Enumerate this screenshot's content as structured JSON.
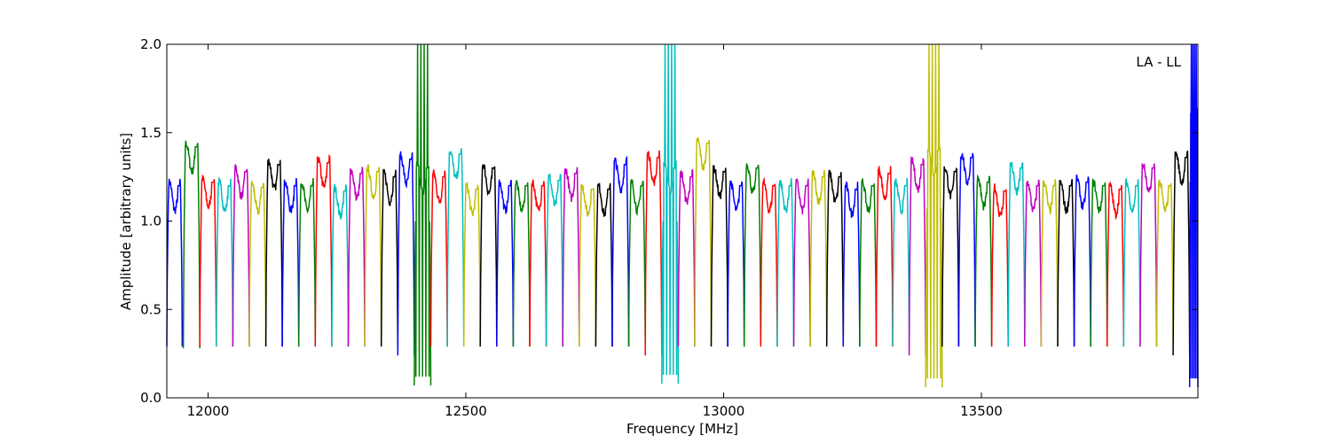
{
  "chart_data": {
    "type": "line",
    "xlabel": "Frequency [MHz]",
    "ylabel": "Amplitude [arbitrary units]",
    "annotation": "LA - LL",
    "xlim": [
      11920,
      13920
    ],
    "ylim": [
      0.0,
      2.0
    ],
    "xticks": [
      12000,
      12500,
      13000,
      13500
    ],
    "yticks": [
      0.0,
      0.5,
      1.0,
      1.5,
      2.0
    ],
    "ytick_labels": [
      "0.0",
      "0.5",
      "1.0",
      "1.5",
      "2.0"
    ],
    "grid": false,
    "legend": "none",
    "channel_width_mhz": 32,
    "color_cycle": [
      "#0000ff",
      "#008000",
      "#ff0000",
      "#00bfbf",
      "#bf00bf",
      "#bfbf00",
      "#000000"
    ],
    "reference_color": "#bfbfbf",
    "series": [
      {
        "x_start": 11920,
        "x_end": 11950,
        "level": 1.2,
        "color": "#0000ff"
      },
      {
        "x_start": 11952,
        "x_end": 11984,
        "level": 1.42,
        "color": "#008000",
        "min": 0.28
      },
      {
        "x_start": 11984,
        "x_end": 12016,
        "level": 1.22,
        "color": "#ff0000"
      },
      {
        "x_start": 12016,
        "x_end": 12048,
        "level": 1.2,
        "color": "#00bfbf"
      },
      {
        "x_start": 12048,
        "x_end": 12080,
        "level": 1.28,
        "color": "#bf00bf"
      },
      {
        "x_start": 12080,
        "x_end": 12112,
        "level": 1.19,
        "color": "#bfbf00"
      },
      {
        "x_start": 12112,
        "x_end": 12144,
        "level": 1.32,
        "color": "#000000"
      },
      {
        "x_start": 12144,
        "x_end": 12176,
        "level": 1.2,
        "color": "#0000ff"
      },
      {
        "x_start": 12176,
        "x_end": 12208,
        "level": 1.2,
        "color": "#008000"
      },
      {
        "x_start": 12208,
        "x_end": 12240,
        "level": 1.33,
        "color": "#ff0000"
      },
      {
        "x_start": 12240,
        "x_end": 12272,
        "level": 1.17,
        "color": "#00bfbf"
      },
      {
        "x_start": 12272,
        "x_end": 12304,
        "level": 1.27,
        "color": "#bf00bf"
      },
      {
        "x_start": 12304,
        "x_end": 12336,
        "level": 1.28,
        "color": "#bfbf00"
      },
      {
        "x_start": 12336,
        "x_end": 12368,
        "level": 1.25,
        "color": "#000000"
      },
      {
        "x_start": 12368,
        "x_end": 12400,
        "level": 1.35,
        "color": "#0000ff",
        "min": 0.24
      },
      {
        "x_start": 12400,
        "x_end": 12432,
        "level": 1.3,
        "color": "#008000",
        "min": 0.07,
        "spike": 2.0
      },
      {
        "x_start": 12432,
        "x_end": 12464,
        "level": 1.25,
        "color": "#ff0000"
      },
      {
        "x_start": 12464,
        "x_end": 12496,
        "level": 1.38,
        "color": "#00bfbf"
      },
      {
        "x_start": 12496,
        "x_end": 12528,
        "level": 1.18,
        "color": "#bfbf00"
      },
      {
        "x_start": 12528,
        "x_end": 12560,
        "level": 1.3,
        "color": "#000000"
      },
      {
        "x_start": 12560,
        "x_end": 12592,
        "level": 1.2,
        "color": "#0000ff"
      },
      {
        "x_start": 12592,
        "x_end": 12624,
        "level": 1.2,
        "color": "#008000"
      },
      {
        "x_start": 12624,
        "x_end": 12656,
        "level": 1.2,
        "color": "#ff0000"
      },
      {
        "x_start": 12656,
        "x_end": 12688,
        "level": 1.23,
        "color": "#00bfbf"
      },
      {
        "x_start": 12688,
        "x_end": 12720,
        "level": 1.27,
        "color": "#bf00bf"
      },
      {
        "x_start": 12720,
        "x_end": 12752,
        "level": 1.18,
        "color": "#bfbf00"
      },
      {
        "x_start": 12752,
        "x_end": 12784,
        "level": 1.18,
        "color": "#000000"
      },
      {
        "x_start": 12784,
        "x_end": 12816,
        "level": 1.32,
        "color": "#0000ff"
      },
      {
        "x_start": 12816,
        "x_end": 12848,
        "level": 1.2,
        "color": "#008000"
      },
      {
        "x_start": 12848,
        "x_end": 12880,
        "level": 1.36,
        "color": "#ff0000",
        "min": 0.24
      },
      {
        "x_start": 12880,
        "x_end": 12912,
        "level": 1.3,
        "color": "#00bfbf",
        "min": 0.08,
        "spike": 2.0
      },
      {
        "x_start": 12912,
        "x_end": 12944,
        "level": 1.25,
        "color": "#bf00bf"
      },
      {
        "x_start": 12944,
        "x_end": 12976,
        "level": 1.44,
        "color": "#bfbf00"
      },
      {
        "x_start": 12976,
        "x_end": 13008,
        "level": 1.28,
        "color": "#000000"
      },
      {
        "x_start": 13008,
        "x_end": 13040,
        "level": 1.2,
        "color": "#0000ff"
      },
      {
        "x_start": 13040,
        "x_end": 13072,
        "level": 1.3,
        "color": "#008000"
      },
      {
        "x_start": 13072,
        "x_end": 13104,
        "level": 1.2,
        "color": "#ff0000"
      },
      {
        "x_start": 13104,
        "x_end": 13136,
        "level": 1.2,
        "color": "#00bfbf"
      },
      {
        "x_start": 13136,
        "x_end": 13168,
        "level": 1.2,
        "color": "#bf00bf"
      },
      {
        "x_start": 13168,
        "x_end": 13200,
        "level": 1.25,
        "color": "#bfbf00"
      },
      {
        "x_start": 13200,
        "x_end": 13232,
        "level": 1.25,
        "color": "#000000"
      },
      {
        "x_start": 13232,
        "x_end": 13264,
        "level": 1.18,
        "color": "#0000ff"
      },
      {
        "x_start": 13264,
        "x_end": 13296,
        "level": 1.2,
        "color": "#008000"
      },
      {
        "x_start": 13296,
        "x_end": 13328,
        "level": 1.27,
        "color": "#ff0000"
      },
      {
        "x_start": 13328,
        "x_end": 13360,
        "level": 1.2,
        "color": "#00bfbf"
      },
      {
        "x_start": 13360,
        "x_end": 13392,
        "level": 1.32,
        "color": "#bf00bf",
        "min": 0.24
      },
      {
        "x_start": 13392,
        "x_end": 13424,
        "level": 1.4,
        "color": "#bfbf00",
        "min": 0.06,
        "spike": 2.0
      },
      {
        "x_start": 13424,
        "x_end": 13456,
        "level": 1.28,
        "color": "#000000"
      },
      {
        "x_start": 13456,
        "x_end": 13488,
        "level": 1.36,
        "color": "#0000ff"
      },
      {
        "x_start": 13488,
        "x_end": 13520,
        "level": 1.22,
        "color": "#008000"
      },
      {
        "x_start": 13520,
        "x_end": 13552,
        "level": 1.17,
        "color": "#ff0000"
      },
      {
        "x_start": 13552,
        "x_end": 13584,
        "level": 1.3,
        "color": "#00bfbf"
      },
      {
        "x_start": 13584,
        "x_end": 13616,
        "level": 1.2,
        "color": "#bf00bf"
      },
      {
        "x_start": 13616,
        "x_end": 13648,
        "level": 1.2,
        "color": "#bfbf00"
      },
      {
        "x_start": 13648,
        "x_end": 13680,
        "level": 1.2,
        "color": "#000000"
      },
      {
        "x_start": 13680,
        "x_end": 13712,
        "level": 1.22,
        "color": "#0000ff"
      },
      {
        "x_start": 13712,
        "x_end": 13744,
        "level": 1.2,
        "color": "#008000"
      },
      {
        "x_start": 13744,
        "x_end": 13776,
        "level": 1.18,
        "color": "#ff0000"
      },
      {
        "x_start": 13776,
        "x_end": 13808,
        "level": 1.2,
        "color": "#00bfbf"
      },
      {
        "x_start": 13808,
        "x_end": 13840,
        "level": 1.3,
        "color": "#bf00bf"
      },
      {
        "x_start": 13840,
        "x_end": 13872,
        "level": 1.2,
        "color": "#bfbf00"
      },
      {
        "x_start": 13872,
        "x_end": 13904,
        "level": 1.36,
        "color": "#000000",
        "min": 0.24
      },
      {
        "x_start": 13904,
        "x_end": 13920,
        "level": 1.6,
        "color": "#0000ff",
        "min": 0.06,
        "spike": 2.0
      }
    ]
  }
}
